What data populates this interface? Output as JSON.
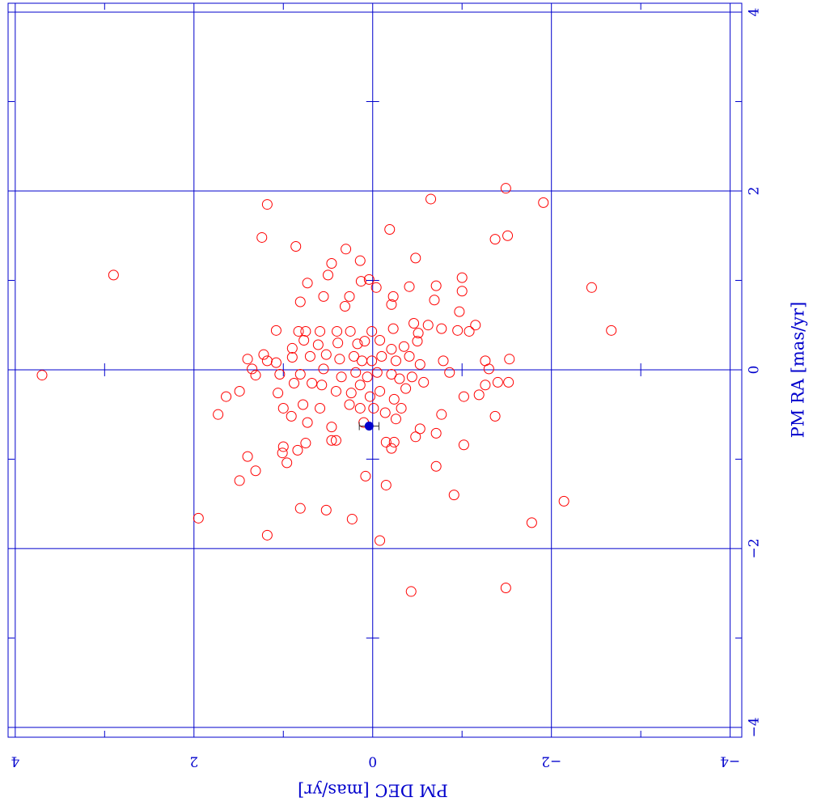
{
  "chart_data": {
    "type": "scatter",
    "xlabel": "PM DEC [mas/yr]",
    "ylabel": "PM RA [mas/yr]",
    "xlim": [
      4.08,
      -4.13
    ],
    "ylim": [
      -4.11,
      4.1
    ],
    "xticks": [
      4,
      2,
      0,
      {
        "value": -2,
        "label": "−2"
      },
      {
        "value": -4,
        "label": "−4"
      }
    ],
    "yticks": [
      {
        "value": -4,
        "label": "−4"
      },
      {
        "value": -2,
        "label": "−2"
      },
      0,
      2,
      4
    ],
    "xminor": [
      3,
      1,
      -1,
      -3
    ],
    "yminor": [
      -3,
      -1,
      1,
      3
    ],
    "grid": true,
    "axis_color": "#0000cc",
    "series": [
      {
        "color": "#ff0000",
        "marker": "open-circle",
        "x": [
          3.7,
          2.9,
          1.18,
          1.24,
          0.86,
          0.3,
          0.46,
          0.14,
          0.5,
          0.04,
          0.13,
          0.73,
          -0.04,
          -0.41,
          -0.71,
          -1.0,
          -1.0,
          -0.19,
          -0.65,
          -1.49,
          -1.91,
          -1.37,
          -1.51,
          -0.48,
          -2.45,
          -2.67,
          0.55,
          0.26,
          0.31,
          0.81,
          -0.23,
          -0.21,
          -0.69,
          -0.97,
          1.08,
          0.75,
          0.59,
          0.83,
          0.4,
          0.25,
          0.01,
          -0.23,
          -0.46,
          -0.62,
          -0.77,
          -0.95,
          -1.08,
          -1.15,
          -0.51,
          0.9,
          0.77,
          0.61,
          0.39,
          0.17,
          0.09,
          -0.08,
          -0.35,
          -0.5,
          -0.21,
          1.4,
          1.22,
          1.18,
          1.08,
          0.9,
          0.7,
          0.52,
          0.37,
          0.21,
          0.12,
          0.01,
          -0.1,
          -0.26,
          -0.41,
          -0.53,
          -0.79,
          -1.26,
          -1.53,
          1.35,
          1.31,
          1.04,
          0.81,
          0.55,
          0.35,
          0.19,
          0.06,
          -0.05,
          -0.21,
          -0.3,
          -0.44,
          -0.86,
          -1.3,
          -1.4,
          -1.52,
          1.64,
          1.49,
          1.06,
          0.88,
          0.68,
          0.57,
          0.41,
          0.24,
          0.14,
          0.03,
          -0.08,
          -0.24,
          -0.37,
          -0.57,
          -1.02,
          -1.19,
          -1.26,
          1.73,
          1.0,
          0.91,
          0.78,
          0.59,
          0.26,
          0.14,
          -0.01,
          -0.14,
          -0.32,
          -0.77,
          -1.37,
          0.73,
          0.46,
          0.1,
          -0.26,
          -0.53,
          -0.71,
          0.75,
          0.46,
          0.41,
          -0.15,
          -0.24,
          -0.48,
          1.0,
          0.84,
          -0.21,
          -1.02,
          1.4,
          1.01,
          1.31,
          0.96,
          -0.71,
          1.49,
          0.08,
          -0.15,
          -0.91,
          0.81,
          0.52,
          0.23,
          1.95,
          1.18,
          -0.08,
          -2.14,
          -1.78,
          -0.43,
          -1.49
        ],
        "y": [
          -0.06,
          1.06,
          1.85,
          1.48,
          1.38,
          1.35,
          1.19,
          1.22,
          1.06,
          1.01,
          0.99,
          0.97,
          0.92,
          0.93,
          0.94,
          1.03,
          0.88,
          1.57,
          1.91,
          2.03,
          1.87,
          1.46,
          1.5,
          1.25,
          0.92,
          0.44,
          0.82,
          0.82,
          0.71,
          0.76,
          0.82,
          0.73,
          0.78,
          0.65,
          0.44,
          0.43,
          0.43,
          0.43,
          0.43,
          0.43,
          0.43,
          0.46,
          0.52,
          0.5,
          0.46,
          0.44,
          0.43,
          0.5,
          0.41,
          0.24,
          0.33,
          0.28,
          0.3,
          0.29,
          0.32,
          0.33,
          0.26,
          0.32,
          0.23,
          0.12,
          0.17,
          0.1,
          0.08,
          0.14,
          0.15,
          0.17,
          0.12,
          0.15,
          0.1,
          0.1,
          0.15,
          0.1,
          0.15,
          0.06,
          0.1,
          0.1,
          0.12,
          0.01,
          -0.06,
          -0.05,
          -0.05,
          0.01,
          -0.08,
          -0.03,
          -0.08,
          -0.03,
          -0.05,
          -0.1,
          -0.08,
          -0.03,
          0.01,
          -0.14,
          -0.14,
          -0.3,
          -0.24,
          -0.26,
          -0.15,
          -0.15,
          -0.17,
          -0.24,
          -0.26,
          -0.17,
          -0.3,
          -0.24,
          -0.33,
          -0.21,
          -0.14,
          -0.3,
          -0.28,
          -0.17,
          -0.5,
          -0.43,
          -0.52,
          -0.39,
          -0.43,
          -0.39,
          -0.43,
          -0.43,
          -0.48,
          -0.43,
          -0.5,
          -0.52,
          -0.59,
          -0.64,
          -0.59,
          -0.55,
          -0.66,
          -0.71,
          -0.82,
          -0.79,
          -0.79,
          -0.81,
          -0.81,
          -0.75,
          -0.86,
          -0.9,
          -0.88,
          -0.84,
          -0.97,
          -0.93,
          -1.13,
          -1.04,
          -1.08,
          -1.24,
          -1.19,
          -1.29,
          -1.4,
          -1.55,
          -1.57,
          -1.67,
          -1.66,
          -1.85,
          -1.91,
          -1.47,
          -1.71,
          -2.48,
          -2.44
        ]
      },
      {
        "color": "#0000cc",
        "marker": "filled-circle",
        "x": [
          0.04
        ],
        "y": [
          -0.63
        ],
        "xerr": [
          0.11
        ],
        "yerr": [
          0.05
        ]
      }
    ]
  }
}
